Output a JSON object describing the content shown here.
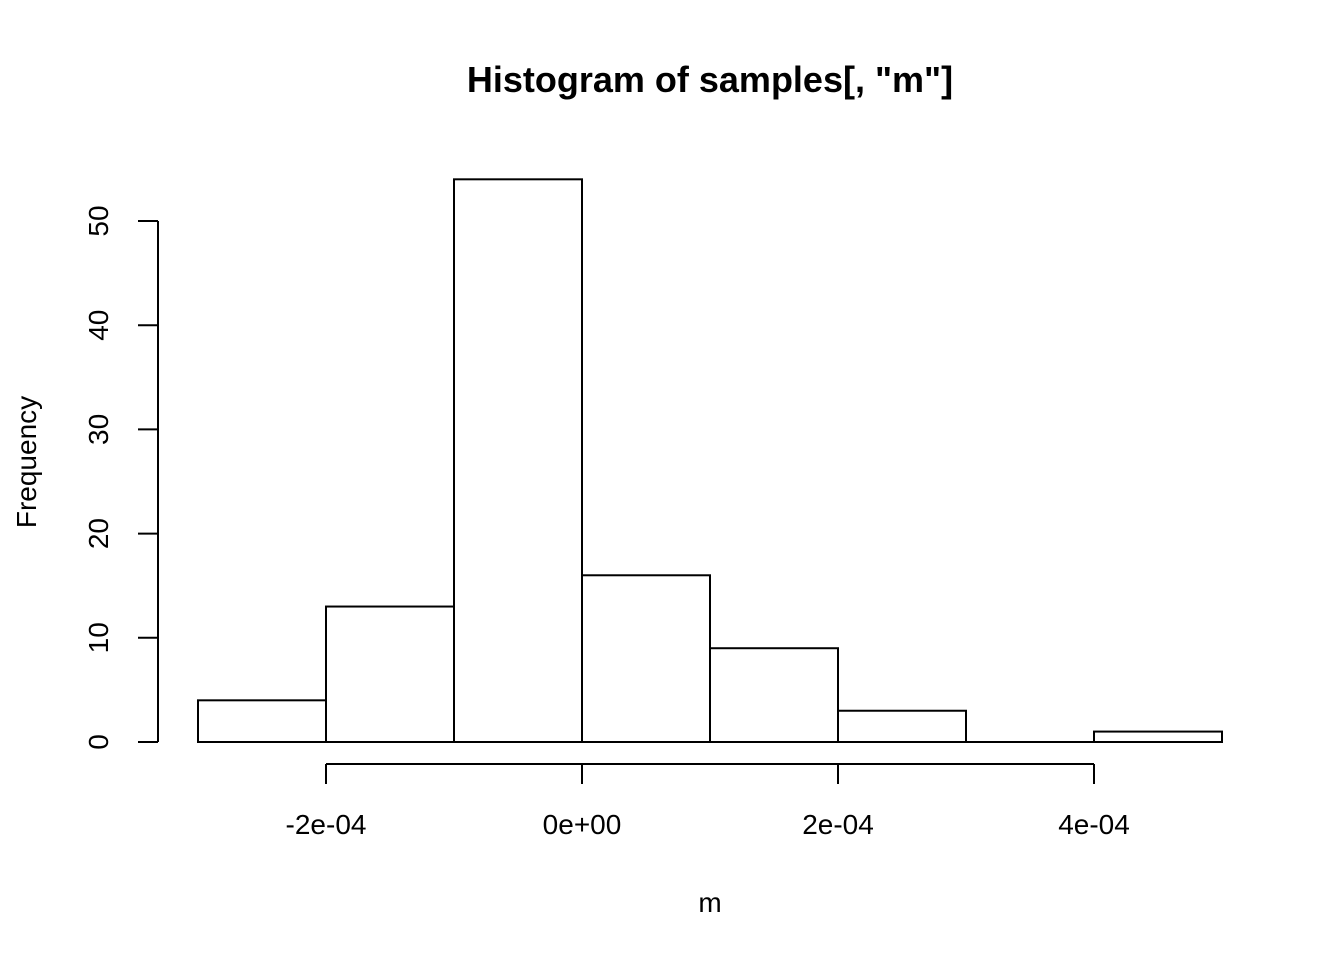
{
  "chart_data": {
    "type": "bar",
    "title": "Histogram of samples[, \"m\"]",
    "xlabel": "m",
    "ylabel": "Frequency",
    "bins": [
      {
        "start": -0.0003,
        "end": -0.0002,
        "count": 4
      },
      {
        "start": -0.0002,
        "end": -0.0001,
        "count": 13
      },
      {
        "start": -0.0001,
        "end": 0.0,
        "count": 54
      },
      {
        "start": 0.0,
        "end": 0.0001,
        "count": 16
      },
      {
        "start": 0.0001,
        "end": 0.0002,
        "count": 9
      },
      {
        "start": 0.0002,
        "end": 0.0003,
        "count": 3
      },
      {
        "start": 0.0003,
        "end": 0.0004,
        "count": 0
      },
      {
        "start": 0.0004,
        "end": 0.0005,
        "count": 1
      }
    ],
    "xlim": [
      -0.0003,
      0.0005
    ],
    "ylim": [
      0,
      54
    ],
    "x_ticks": [
      {
        "value": -0.0002,
        "label": "-2e-04"
      },
      {
        "value": 0.0,
        "label": "0e+00"
      },
      {
        "value": 0.0002,
        "label": "2e-04"
      },
      {
        "value": 0.0004,
        "label": "4e-04"
      }
    ],
    "y_ticks": [
      {
        "value": 0,
        "label": "0"
      },
      {
        "value": 10,
        "label": "10"
      },
      {
        "value": 20,
        "label": "20"
      },
      {
        "value": 30,
        "label": "30"
      },
      {
        "value": 40,
        "label": "40"
      },
      {
        "value": 50,
        "label": "50"
      }
    ],
    "grid": false,
    "legend": "none"
  }
}
